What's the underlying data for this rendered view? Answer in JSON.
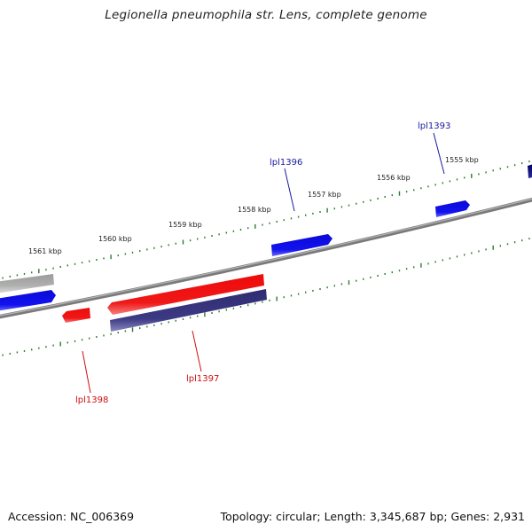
{
  "title": "Legionella pneumophila str. Lens, complete genome",
  "footer": {
    "accession": "Accession: NC_006369",
    "summary": "Topology: circular; Length: 3,345,687 bp; Genes: 2,931"
  },
  "colors": {
    "forward": "#1010e0",
    "reverse": "#e01010",
    "other": "#3d3a80",
    "grey": "#aaaaaa",
    "tick": "#2d7a2d",
    "backbone": "#808080"
  },
  "scale_labels": [
    "1561 kbp",
    "1560 kbp",
    "1559 kbp",
    "1558 kbp",
    "1557 kbp",
    "1556 kbp",
    "1555 kbp"
  ],
  "gene_labels": [
    {
      "text": "lpl1393",
      "color": "#1a1aa0"
    },
    {
      "text": "lpl1396",
      "color": "#1a1aa0"
    },
    {
      "text": "lpl1397",
      "color": "#cc1111"
    },
    {
      "text": "lpl1398",
      "color": "#cc1111"
    }
  ]
}
